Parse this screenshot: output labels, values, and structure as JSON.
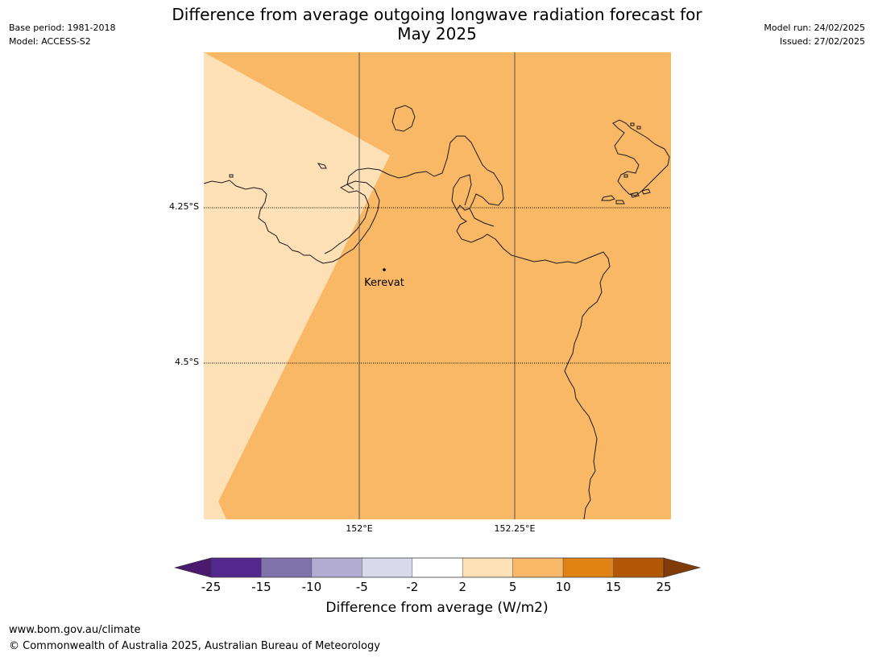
{
  "title": {
    "line1": "Difference from average outgoing longwave radiation forecast for",
    "line2": "May 2025"
  },
  "meta_left": {
    "base_period": "Base period: 1981-2018",
    "model": "Model: ACCESS-S2"
  },
  "meta_right": {
    "model_run": "Model run: 24/02/2025",
    "issued": "Issued: 27/02/2025"
  },
  "map": {
    "lat_labels": [
      "4.25°S",
      "4.5°S"
    ],
    "lon_labels": [
      "152°E",
      "152.25°E"
    ],
    "place": {
      "name": "Kerevat"
    },
    "region_colors": {
      "anomaly_2_to_5": "#fde0b6",
      "anomaly_5_to_10": "#f9b866"
    },
    "coastline_color": "#1a1a1a"
  },
  "colorbar": {
    "ticks": [
      "-25",
      "-15",
      "-10",
      "-5",
      "-2",
      "2",
      "5",
      "10",
      "15",
      "25"
    ],
    "colors": [
      "#4a1a6e",
      "#54278f",
      "#8073ac",
      "#b2abd2",
      "#d8daeb",
      "#ffffff",
      "#fde0b6",
      "#f9b866",
      "#e08214",
      "#b35806",
      "#7f3b08"
    ],
    "label": "Difference from average (W/m2)"
  },
  "footer": {
    "url": "www.bom.gov.au/climate",
    "copyright": "© Commonwealth of Australia 2025, Australian Bureau of Meteorology"
  }
}
